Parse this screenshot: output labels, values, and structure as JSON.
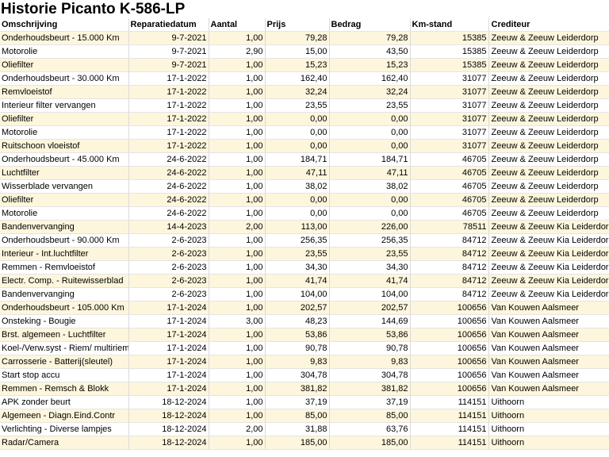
{
  "title": "Historie Picanto K-586-LP",
  "columns": [
    "Omschrijving",
    "Reparatiedatum",
    "Aantal",
    "Prijs",
    "Bedrag",
    "Km-stand",
    "Crediteur"
  ],
  "rows": [
    [
      "Onderhoudsbeurt - 15.000 Km",
      "9-7-2021",
      "1,00",
      "79,28",
      "79,28",
      "15385",
      "Zeeuw & Zeeuw Leiderdorp"
    ],
    [
      "Motorolie",
      "9-7-2021",
      "2,90",
      "15,00",
      "43,50",
      "15385",
      "Zeeuw & Zeeuw Leiderdorp"
    ],
    [
      "Oliefilter",
      "9-7-2021",
      "1,00",
      "15,23",
      "15,23",
      "15385",
      "Zeeuw & Zeeuw Leiderdorp"
    ],
    [
      "Onderhoudsbeurt - 30.000 Km",
      "17-1-2022",
      "1,00",
      "162,40",
      "162,40",
      "31077",
      "Zeeuw & Zeeuw Leiderdorp"
    ],
    [
      "Remvloeistof",
      "17-1-2022",
      "1,00",
      "32,24",
      "32,24",
      "31077",
      "Zeeuw & Zeeuw Leiderdorp"
    ],
    [
      "Interieur filter vervangen",
      "17-1-2022",
      "1,00",
      "23,55",
      "23,55",
      "31077",
      "Zeeuw & Zeeuw Leiderdorp"
    ],
    [
      "Oliefilter",
      "17-1-2022",
      "1,00",
      "0,00",
      "0,00",
      "31077",
      "Zeeuw & Zeeuw Leiderdorp"
    ],
    [
      "Motorolie",
      "17-1-2022",
      "1,00",
      "0,00",
      "0,00",
      "31077",
      "Zeeuw & Zeeuw Leiderdorp"
    ],
    [
      "Ruitschoon vloeistof",
      "17-1-2022",
      "1,00",
      "0,00",
      "0,00",
      "31077",
      "Zeeuw & Zeeuw Leiderdorp"
    ],
    [
      "Onderhoudsbeurt - 45.000 Km",
      "24-6-2022",
      "1,00",
      "184,71",
      "184,71",
      "46705",
      "Zeeuw & Zeeuw Leiderdorp"
    ],
    [
      "Luchtfilter",
      "24-6-2022",
      "1,00",
      "47,11",
      "47,11",
      "46705",
      "Zeeuw & Zeeuw Leiderdorp"
    ],
    [
      "Wisserblade vervangen",
      "24-6-2022",
      "1,00",
      "38,02",
      "38,02",
      "46705",
      "Zeeuw & Zeeuw Leiderdorp"
    ],
    [
      "Oliefilter",
      "24-6-2022",
      "1,00",
      "0,00",
      "0,00",
      "46705",
      "Zeeuw & Zeeuw Leiderdorp"
    ],
    [
      "Motorolie",
      "24-6-2022",
      "1,00",
      "0,00",
      "0,00",
      "46705",
      "Zeeuw & Zeeuw Leiderdorp"
    ],
    [
      "Bandenvervanging",
      "14-4-2023",
      "2,00",
      "113,00",
      "226,00",
      "78511",
      "Zeeuw & Zeeuw Kia Leiderdorp"
    ],
    [
      "Onderhoudsbeurt - 90.000 Km",
      "2-6-2023",
      "1,00",
      "256,35",
      "256,35",
      "84712",
      "Zeeuw & Zeeuw Kia Leiderdorp"
    ],
    [
      "Interieur - Int.luchtfilter",
      "2-6-2023",
      "1,00",
      "23,55",
      "23,55",
      "84712",
      "Zeeuw & Zeeuw Kia Leiderdorp"
    ],
    [
      "Remmen - Remvloeistof",
      "2-6-2023",
      "1,00",
      "34,30",
      "34,30",
      "84712",
      "Zeeuw & Zeeuw Kia Leiderdorp"
    ],
    [
      "Electr. Comp. - Ruitewisserblad",
      "2-6-2023",
      "1,00",
      "41,74",
      "41,74",
      "84712",
      "Zeeuw & Zeeuw Kia Leiderdorp"
    ],
    [
      "Bandenvervanging",
      "2-6-2023",
      "1,00",
      "104,00",
      "104,00",
      "84712",
      "Zeeuw & Zeeuw Kia Leiderdorp"
    ],
    [
      "Onderhoudsbeurt - 105.000 Km",
      "17-1-2024",
      "1,00",
      "202,57",
      "202,57",
      "100656",
      "Van Kouwen Aalsmeer"
    ],
    [
      "Onsteking - Bougie",
      "17-1-2024",
      "3,00",
      "48,23",
      "144,69",
      "100656",
      "Van Kouwen Aalsmeer"
    ],
    [
      "Brst. algemeen - Luchtfilter",
      "17-1-2024",
      "1,00",
      "53,86",
      "53,86",
      "100656",
      "Van Kouwen Aalsmeer"
    ],
    [
      "Koel-/Verw.syst - Riem/ multiriem",
      "17-1-2024",
      "1,00",
      "90,78",
      "90,78",
      "100656",
      "Van Kouwen Aalsmeer"
    ],
    [
      "Carrosserie - Batterij(sleutel)",
      "17-1-2024",
      "1,00",
      "9,83",
      "9,83",
      "100656",
      "Van Kouwen Aalsmeer"
    ],
    [
      "Start stop accu",
      "17-1-2024",
      "1,00",
      "304,78",
      "304,78",
      "100656",
      "Van Kouwen Aalsmeer"
    ],
    [
      "Remmen - Remsch & Blokk",
      "17-1-2024",
      "1,00",
      "381,82",
      "381,82",
      "100656",
      "Van Kouwen Aalsmeer"
    ],
    [
      "APK zonder beurt",
      "18-12-2024",
      "1,00",
      "37,19",
      "37,19",
      "114151",
      "Uithoorn"
    ],
    [
      "Algemeen - Diagn.Eind.Contr",
      "18-12-2024",
      "1,00",
      "85,00",
      "85,00",
      "114151",
      "Uithoorn"
    ],
    [
      "Verlichting - Diverse lampjes",
      "18-12-2024",
      "2,00",
      "31,88",
      "63,76",
      "114151",
      "Uithoorn"
    ],
    [
      "Radar/Camera",
      "18-12-2024",
      "1,00",
      "185,00",
      "185,00",
      "114151",
      "Uithoorn"
    ]
  ]
}
